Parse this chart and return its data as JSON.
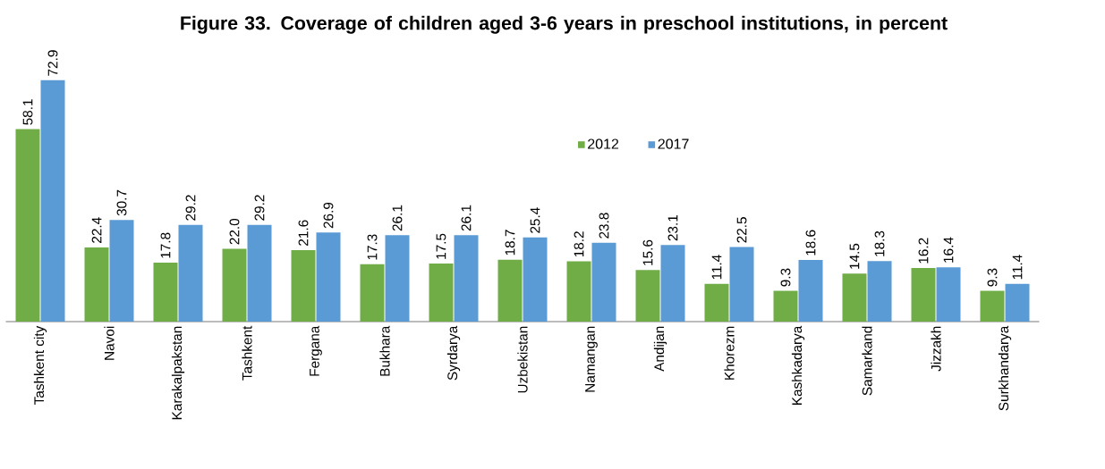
{
  "chart_data": {
    "type": "bar",
    "title": "Figure 33. Coverage of children aged 3-6 years in preschool institutions, in percent",
    "categories": [
      "Tashkent city",
      "Navoi",
      "Karakalpakstan",
      "Tashkent",
      "Fergana",
      "Bukhara",
      "Syrdarya",
      "Uzbekistan",
      "Namangan",
      "Andijan",
      "Khorezm",
      "Kashkadarya",
      "Samarkand",
      "Jizzakh",
      "Surkhandarya"
    ],
    "series": [
      {
        "name": "2012",
        "color": "#70ad47",
        "values": [
          58.1,
          22.4,
          17.8,
          22.0,
          21.6,
          17.3,
          17.5,
          18.7,
          18.2,
          15.6,
          11.4,
          9.3,
          14.5,
          16.2,
          9.3
        ],
        "value_labels": [
          "58.1",
          "22.4",
          "17.8",
          "22.0",
          "21.6",
          "17.3",
          "17.5",
          "18.7",
          "18.2",
          "15.6",
          "11.4",
          "9.3",
          "14.5",
          "16.2",
          "9.3"
        ]
      },
      {
        "name": "2017",
        "color": "#5b9bd5",
        "values": [
          72.9,
          30.7,
          29.2,
          29.2,
          26.9,
          26.1,
          26.1,
          25.4,
          23.8,
          23.1,
          22.5,
          18.6,
          18.3,
          16.4,
          11.4
        ],
        "value_labels": [
          "72.9",
          "30.7",
          "29.2",
          "29.2",
          "26.9",
          "26.1",
          "26.1",
          "25.4",
          "23.8",
          "23.1",
          "22.5",
          "18.6",
          "18.3",
          "16.4",
          "11.4"
        ]
      }
    ],
    "legend": "top right"
  }
}
